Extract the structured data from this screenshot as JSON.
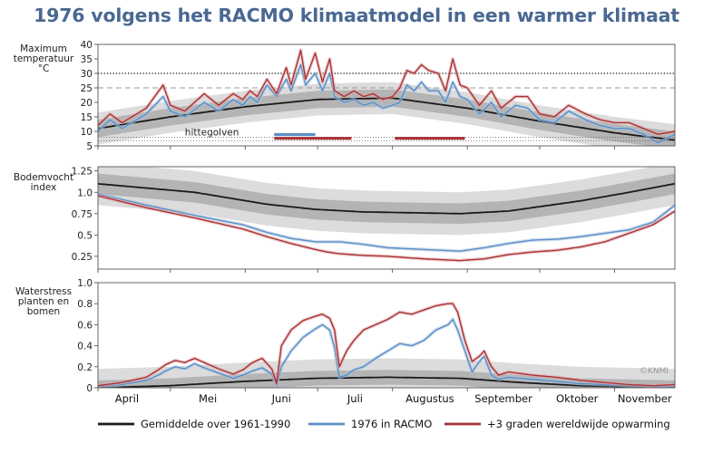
{
  "title": "1976 volgens het RACMO klimaatmodel in een warmer klimaat",
  "copyright": "©KNMI",
  "legend": [
    {
      "label": "Gemiddelde over 1961-1990",
      "color": "#1a1a1a"
    },
    {
      "label": "1976 in RACMO",
      "color": "#5b8ec4"
    },
    {
      "label": "+3 graden wereldwijde opwarming",
      "color": "#a83236"
    }
  ],
  "chart_data": {
    "type": "line",
    "x_months": [
      "April",
      "Mei",
      "Juni",
      "Juli",
      "Augustus",
      "September",
      "Oktober",
      "November"
    ],
    "colors": {
      "mean": "#1a1a1a",
      "racmo": "#5b8ec4",
      "warm": "#a83236",
      "band_outer": "#dcdcdc",
      "band_inner": "#b4b4b4"
    },
    "panels": [
      {
        "id": "temperature",
        "ylabel": [
          "Maximum",
          "temperatuur",
          "°C"
        ],
        "ylim": [
          5,
          40
        ],
        "yticks": [
          5,
          10,
          15,
          20,
          25,
          30,
          35,
          40
        ],
        "reference_lines": [
          {
            "value": 30,
            "style": "dotted"
          },
          {
            "value": 25,
            "style": "dashed"
          }
        ],
        "heatwave_label": "hittegolven",
        "heatwaves": [
          {
            "series": "1976 in RACMO",
            "start_day": 73,
            "end_day": 90
          },
          {
            "series": "+3 graden wereldwijde opwarming",
            "start_day": 73,
            "end_day": 105
          },
          {
            "series": "+3 graden wereldwijde opwarming",
            "start_day": 123,
            "end_day": 152
          }
        ],
        "mean_keypoints": [
          [
            0,
            11.0
          ],
          [
            30,
            15.0
          ],
          [
            61,
            18.5
          ],
          [
            91,
            21.0
          ],
          [
            122,
            21.5
          ],
          [
            153,
            18.0
          ],
          [
            183,
            13.5
          ],
          [
            214,
            9.5
          ],
          [
            239,
            7.0
          ]
        ],
        "band_outer_halfwidth": 5.5,
        "band_inner_halfwidth": 3.0,
        "racmo_keypoints": [
          [
            0,
            10
          ],
          [
            5,
            14
          ],
          [
            10,
            11
          ],
          [
            20,
            16
          ],
          [
            27,
            22
          ],
          [
            30,
            17
          ],
          [
            36,
            15
          ],
          [
            44,
            20
          ],
          [
            50,
            17
          ],
          [
            56,
            21
          ],
          [
            60,
            19
          ],
          [
            63,
            22
          ],
          [
            66,
            20
          ],
          [
            70,
            26
          ],
          [
            74,
            22
          ],
          [
            78,
            28
          ],
          [
            80,
            24
          ],
          [
            84,
            33
          ],
          [
            86,
            26
          ],
          [
            90,
            30
          ],
          [
            93,
            24
          ],
          [
            96,
            30
          ],
          [
            98,
            22
          ],
          [
            102,
            20
          ],
          [
            106,
            21
          ],
          [
            110,
            19
          ],
          [
            114,
            20
          ],
          [
            118,
            18
          ],
          [
            122,
            19
          ],
          [
            125,
            20
          ],
          [
            128,
            26
          ],
          [
            131,
            24
          ],
          [
            134,
            27
          ],
          [
            137,
            24
          ],
          [
            141,
            24
          ],
          [
            144,
            20
          ],
          [
            147,
            27
          ],
          [
            150,
            22
          ],
          [
            153,
            21
          ],
          [
            158,
            16
          ],
          [
            163,
            20
          ],
          [
            167,
            15
          ],
          [
            173,
            19
          ],
          [
            178,
            18
          ],
          [
            183,
            14
          ],
          [
            189,
            13
          ],
          [
            195,
            17
          ],
          [
            202,
            14
          ],
          [
            208,
            12
          ],
          [
            214,
            11
          ],
          [
            220,
            11
          ],
          [
            226,
            9
          ],
          [
            232,
            6
          ],
          [
            239,
            9
          ]
        ],
        "warm_keypoints": [
          [
            0,
            12
          ],
          [
            5,
            16
          ],
          [
            10,
            13
          ],
          [
            20,
            18
          ],
          [
            27,
            26
          ],
          [
            30,
            19
          ],
          [
            36,
            17
          ],
          [
            44,
            23
          ],
          [
            50,
            19
          ],
          [
            56,
            23
          ],
          [
            60,
            21
          ],
          [
            63,
            24
          ],
          [
            66,
            22
          ],
          [
            70,
            28
          ],
          [
            74,
            23
          ],
          [
            78,
            32
          ],
          [
            80,
            26
          ],
          [
            84,
            38
          ],
          [
            86,
            28
          ],
          [
            90,
            37
          ],
          [
            93,
            27
          ],
          [
            96,
            35
          ],
          [
            98,
            24
          ],
          [
            102,
            22
          ],
          [
            106,
            24
          ],
          [
            110,
            22
          ],
          [
            114,
            23
          ],
          [
            118,
            21
          ],
          [
            122,
            22
          ],
          [
            125,
            25
          ],
          [
            128,
            31
          ],
          [
            131,
            30
          ],
          [
            134,
            33
          ],
          [
            137,
            31
          ],
          [
            141,
            30
          ],
          [
            144,
            24
          ],
          [
            147,
            35
          ],
          [
            150,
            26
          ],
          [
            153,
            25
          ],
          [
            158,
            19
          ],
          [
            163,
            24
          ],
          [
            167,
            18
          ],
          [
            173,
            22
          ],
          [
            178,
            22
          ],
          [
            183,
            16
          ],
          [
            189,
            15
          ],
          [
            195,
            19
          ],
          [
            202,
            16
          ],
          [
            208,
            14
          ],
          [
            214,
            13
          ],
          [
            220,
            13
          ],
          [
            226,
            11
          ],
          [
            232,
            9
          ],
          [
            239,
            10
          ]
        ]
      },
      {
        "id": "soilmoisture",
        "ylabel": [
          "Bodemvocht",
          "index"
        ],
        "ylim": [
          0.1,
          1.3
        ],
        "yticks": [
          0.25,
          0.5,
          0.75,
          1.0,
          1.25
        ],
        "ytick_labels": [
          "0.25",
          "0.5",
          "0.75",
          "1.0",
          "1.25"
        ],
        "mean_keypoints": [
          [
            0,
            1.1
          ],
          [
            40,
            1.0
          ],
          [
            70,
            0.86
          ],
          [
            90,
            0.8
          ],
          [
            110,
            0.77
          ],
          [
            150,
            0.75
          ],
          [
            170,
            0.78
          ],
          [
            200,
            0.9
          ],
          [
            220,
            1.0
          ],
          [
            239,
            1.1
          ]
        ],
        "band_outer_halfwidth": 0.25,
        "band_inner_halfwidth": 0.12,
        "racmo_keypoints": [
          [
            0,
            0.98
          ],
          [
            20,
            0.85
          ],
          [
            40,
            0.73
          ],
          [
            60,
            0.62
          ],
          [
            70,
            0.53
          ],
          [
            80,
            0.46
          ],
          [
            90,
            0.42
          ],
          [
            100,
            0.42
          ],
          [
            110,
            0.39
          ],
          [
            120,
            0.35
          ],
          [
            135,
            0.33
          ],
          [
            150,
            0.31
          ],
          [
            160,
            0.35
          ],
          [
            170,
            0.4
          ],
          [
            180,
            0.44
          ],
          [
            190,
            0.45
          ],
          [
            200,
            0.48
          ],
          [
            210,
            0.52
          ],
          [
            220,
            0.56
          ],
          [
            230,
            0.65
          ],
          [
            239,
            0.85
          ]
        ],
        "warm_keypoints": [
          [
            0,
            0.96
          ],
          [
            20,
            0.82
          ],
          [
            40,
            0.7
          ],
          [
            60,
            0.57
          ],
          [
            70,
            0.48
          ],
          [
            80,
            0.4
          ],
          [
            90,
            0.33
          ],
          [
            95,
            0.3
          ],
          [
            100,
            0.28
          ],
          [
            110,
            0.26
          ],
          [
            120,
            0.25
          ],
          [
            135,
            0.22
          ],
          [
            150,
            0.2
          ],
          [
            160,
            0.22
          ],
          [
            170,
            0.27
          ],
          [
            180,
            0.3
          ],
          [
            190,
            0.32
          ],
          [
            200,
            0.36
          ],
          [
            210,
            0.42
          ],
          [
            220,
            0.52
          ],
          [
            230,
            0.62
          ],
          [
            239,
            0.78
          ]
        ]
      },
      {
        "id": "waterstress",
        "ylabel": [
          "Waterstress",
          "planten en",
          "bomen"
        ],
        "ylim": [
          0,
          1.0
        ],
        "yticks": [
          0,
          0.2,
          0.4,
          0.6,
          0.8,
          1.0
        ],
        "ytick_labels": [
          "0",
          "0.2",
          "0.4",
          "0.6",
          "0.8",
          "1.0"
        ],
        "mean_keypoints": [
          [
            0,
            0.0
          ],
          [
            30,
            0.02
          ],
          [
            60,
            0.06
          ],
          [
            90,
            0.09
          ],
          [
            120,
            0.1
          ],
          [
            150,
            0.09
          ],
          [
            175,
            0.05
          ],
          [
            200,
            0.02
          ],
          [
            239,
            0.0
          ]
        ],
        "band_outer_halfwidth": 0.18,
        "band_inner_halfwidth": 0.07,
        "racmo_keypoints": [
          [
            0,
            0.01
          ],
          [
            10,
            0.03
          ],
          [
            20,
            0.07
          ],
          [
            25,
            0.12
          ],
          [
            28,
            0.16
          ],
          [
            32,
            0.2
          ],
          [
            36,
            0.18
          ],
          [
            40,
            0.23
          ],
          [
            44,
            0.19
          ],
          [
            50,
            0.14
          ],
          [
            56,
            0.09
          ],
          [
            60,
            0.12
          ],
          [
            64,
            0.16
          ],
          [
            68,
            0.19
          ],
          [
            72,
            0.13
          ],
          [
            74,
            0.02
          ],
          [
            76,
            0.2
          ],
          [
            80,
            0.35
          ],
          [
            85,
            0.48
          ],
          [
            90,
            0.56
          ],
          [
            93,
            0.6
          ],
          [
            96,
            0.55
          ],
          [
            98,
            0.38
          ],
          [
            100,
            0.1
          ],
          [
            103,
            0.12
          ],
          [
            106,
            0.17
          ],
          [
            110,
            0.2
          ],
          [
            115,
            0.28
          ],
          [
            120,
            0.35
          ],
          [
            125,
            0.42
          ],
          [
            130,
            0.4
          ],
          [
            135,
            0.45
          ],
          [
            140,
            0.55
          ],
          [
            145,
            0.6
          ],
          [
            147,
            0.65
          ],
          [
            149,
            0.55
          ],
          [
            152,
            0.35
          ],
          [
            155,
            0.15
          ],
          [
            158,
            0.25
          ],
          [
            160,
            0.3
          ],
          [
            163,
            0.12
          ],
          [
            166,
            0.08
          ],
          [
            170,
            0.1
          ],
          [
            180,
            0.08
          ],
          [
            190,
            0.06
          ],
          [
            200,
            0.04
          ],
          [
            210,
            0.03
          ],
          [
            220,
            0.02
          ],
          [
            230,
            0.01
          ],
          [
            239,
            0.01
          ]
        ],
        "warm_keypoints": [
          [
            0,
            0.02
          ],
          [
            10,
            0.05
          ],
          [
            20,
            0.1
          ],
          [
            25,
            0.17
          ],
          [
            28,
            0.22
          ],
          [
            32,
            0.26
          ],
          [
            36,
            0.24
          ],
          [
            40,
            0.28
          ],
          [
            44,
            0.24
          ],
          [
            50,
            0.18
          ],
          [
            56,
            0.13
          ],
          [
            60,
            0.17
          ],
          [
            64,
            0.24
          ],
          [
            68,
            0.28
          ],
          [
            72,
            0.18
          ],
          [
            74,
            0.04
          ],
          [
            76,
            0.4
          ],
          [
            80,
            0.55
          ],
          [
            85,
            0.64
          ],
          [
            90,
            0.68
          ],
          [
            93,
            0.7
          ],
          [
            96,
            0.66
          ],
          [
            98,
            0.55
          ],
          [
            100,
            0.2
          ],
          [
            103,
            0.35
          ],
          [
            106,
            0.45
          ],
          [
            110,
            0.55
          ],
          [
            115,
            0.6
          ],
          [
            120,
            0.65
          ],
          [
            125,
            0.72
          ],
          [
            130,
            0.7
          ],
          [
            135,
            0.74
          ],
          [
            140,
            0.78
          ],
          [
            145,
            0.8
          ],
          [
            147,
            0.8
          ],
          [
            149,
            0.72
          ],
          [
            152,
            0.45
          ],
          [
            155,
            0.25
          ],
          [
            158,
            0.3
          ],
          [
            160,
            0.35
          ],
          [
            163,
            0.2
          ],
          [
            166,
            0.12
          ],
          [
            170,
            0.15
          ],
          [
            180,
            0.12
          ],
          [
            190,
            0.1
          ],
          [
            200,
            0.07
          ],
          [
            210,
            0.05
          ],
          [
            220,
            0.03
          ],
          [
            230,
            0.02
          ],
          [
            239,
            0.03
          ]
        ]
      }
    ]
  }
}
